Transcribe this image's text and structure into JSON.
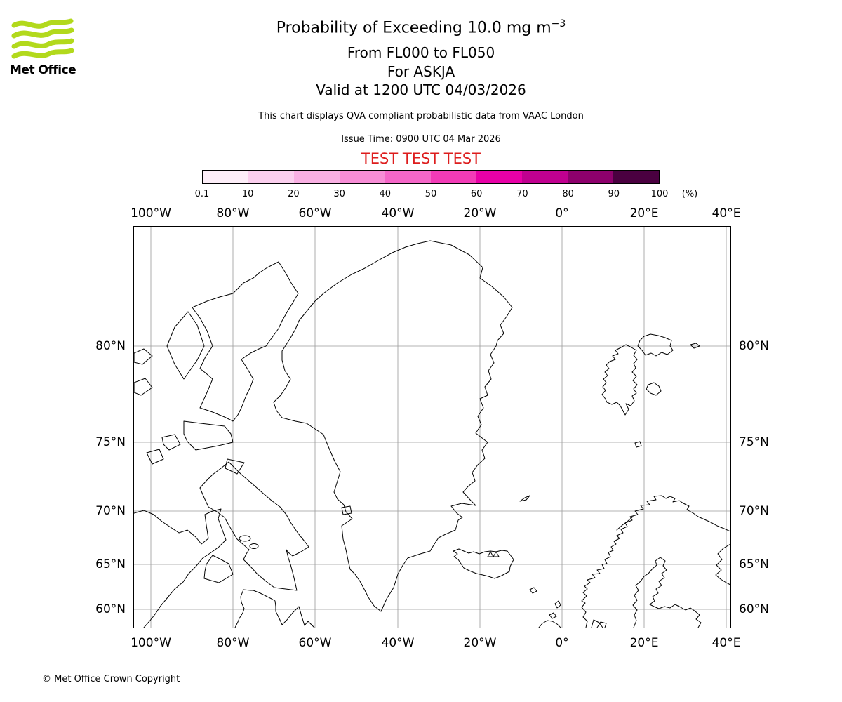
{
  "logo": {
    "brand": "Met Office"
  },
  "header": {
    "title_main": "Probability of Exceeding 10.0 mg m",
    "title_sup": "−3",
    "line2": "From FL000 to FL050",
    "line3": "For ASKJA",
    "line4": "Valid at 1200 UTC 04/03/2026",
    "note": "This chart displays QVA compliant probabilistic data from VAAC London",
    "issue": "Issue Time: 0900 UTC 04 Mar 2026",
    "test": "TEST TEST TEST"
  },
  "colorbar": {
    "unit": "(%)",
    "ticks": [
      "0.1",
      "10",
      "20",
      "30",
      "40",
      "50",
      "60",
      "70",
      "80",
      "90",
      "100"
    ],
    "colors": [
      "#fdeef8",
      "#fbcfee",
      "#f9b0e3",
      "#f78dd6",
      "#f566c8",
      "#f23bb7",
      "#e800a7",
      "#c00090",
      "#8d006c",
      "#4a0040"
    ]
  },
  "map": {
    "lon_labels": [
      "100°W",
      "80°W",
      "60°W",
      "40°W",
      "20°W",
      "0°",
      "20°E",
      "40°E"
    ],
    "lat_labels": [
      "80°N",
      "75°N",
      "70°N",
      "65°N",
      "60°N"
    ]
  },
  "theme": {
    "test_red": "#dd1d1d",
    "logo_green": "#b2d91c",
    "grid_gray": "#9a9a9a"
  },
  "footer": {
    "copyright": "© Met Office Crown Copyright"
  }
}
